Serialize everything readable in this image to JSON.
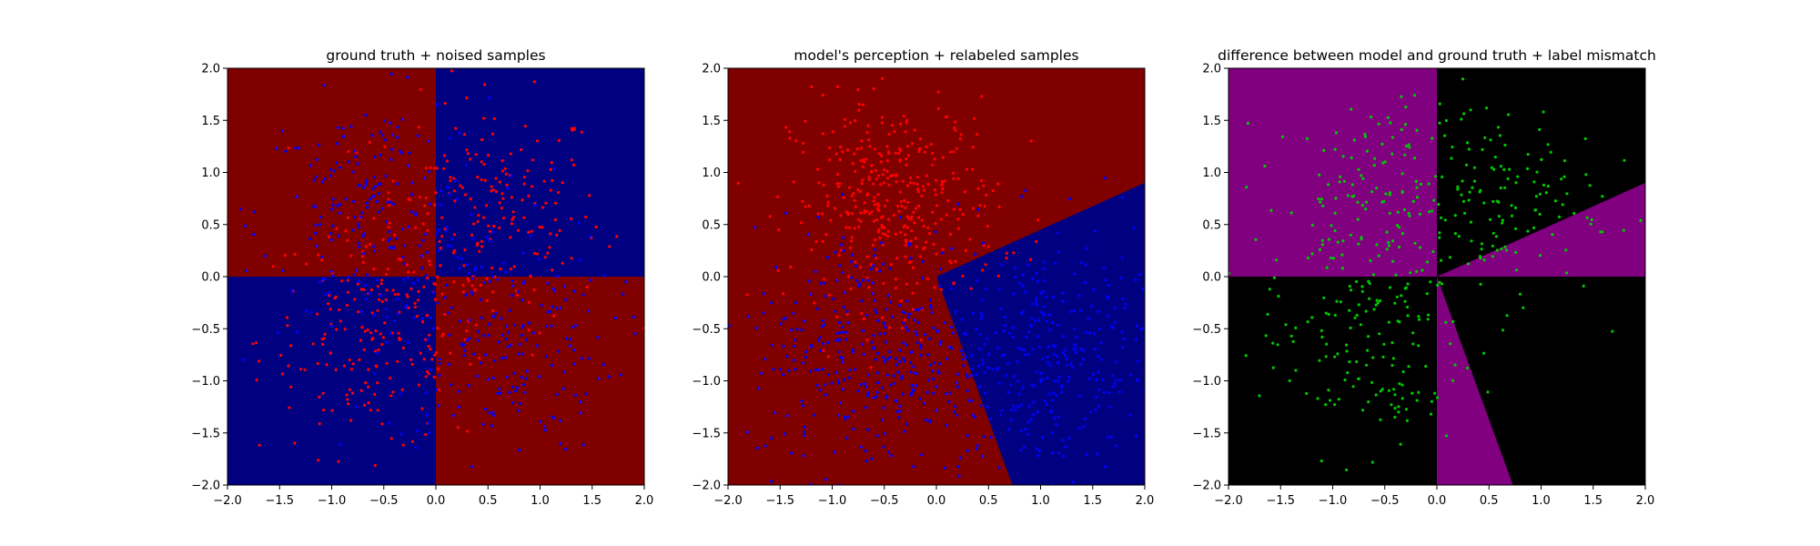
{
  "chart_data": [
    {
      "type": "scatter",
      "title": "ground truth + noised samples",
      "xlim": [
        -2.0,
        2.0
      ],
      "ylim": [
        -2.0,
        2.0
      ],
      "xticks": [
        "−2.0",
        "−1.5",
        "−1.0",
        "−0.5",
        "0.0",
        "0.5",
        "1.0",
        "1.5",
        "2.0"
      ],
      "yticks": [
        "−2.0",
        "−1.5",
        "−1.0",
        "−0.5",
        "0.0",
        "0.5",
        "1.0",
        "1.5",
        "2.0"
      ],
      "background": "XOR quadrants: red where x·y < 0, blue where x·y > 0",
      "regions": [
        {
          "name": "red",
          "color": "#800000",
          "polygons": [
            [
              [
                -2,
                0
              ],
              [
                0,
                0
              ],
              [
                0,
                2
              ],
              [
                -2,
                2
              ]
            ],
            [
              [
                0,
                -2
              ],
              [
                2,
                -2
              ],
              [
                2,
                0
              ],
              [
                0,
                0
              ]
            ]
          ]
        },
        {
          "name": "blue",
          "color": "#000080",
          "polygons": [
            [
              [
                0,
                0
              ],
              [
                2,
                0
              ],
              [
                2,
                2
              ],
              [
                0,
                2
              ]
            ],
            [
              [
                -2,
                -2
              ],
              [
                0,
                -2
              ],
              [
                0,
                0
              ],
              [
                -2,
                0
              ]
            ]
          ]
        }
      ],
      "series": [
        {
          "color": "#ff0000",
          "cluster_centers": [
            [
              0.5,
              0.6
            ],
            [
              -0.6,
              -0.6
            ]
          ],
          "spread": 0.55,
          "count": 420
        },
        {
          "color": "#0000ff",
          "cluster_centers": [
            [
              -0.6,
              0.6
            ],
            [
              0.6,
              -0.6
            ]
          ],
          "spread": 0.55,
          "count": 420
        }
      ],
      "grid": false
    },
    {
      "type": "scatter",
      "title": "model's perception + relabeled samples",
      "xlim": [
        -2.0,
        2.0
      ],
      "ylim": [
        -2.0,
        2.0
      ],
      "xticks": [
        "−2.0",
        "−1.5",
        "−1.0",
        "−0.5",
        "0.0",
        "0.5",
        "1.0",
        "1.5",
        "2.0"
      ],
      "yticks": [
        "−2.0",
        "−1.5",
        "−1.0",
        "−0.5",
        "0.0",
        "0.5",
        "1.0",
        "1.5",
        "2.0"
      ],
      "background": "blue wedge from origin between rays to (2.0, 0.9) and (0.73, -2.0); red elsewhere",
      "regions": [
        {
          "name": "red",
          "color": "#800000",
          "polygons": [
            [
              [
                -2,
                -2
              ],
              [
                2,
                -2
              ],
              [
                2,
                2
              ],
              [
                -2,
                2
              ]
            ]
          ]
        },
        {
          "name": "blue",
          "color": "#000080",
          "polygons": [
            [
              [
                0,
                0
              ],
              [
                2,
                0.9
              ],
              [
                2,
                -2
              ],
              [
                0.73,
                -2
              ]
            ]
          ]
        }
      ],
      "series": [
        {
          "color": "#ff0000",
          "cluster_centers": [
            [
              -0.4,
              0.7
            ]
          ],
          "spread": 0.5,
          "count": 380
        },
        {
          "color": "#0000ff",
          "cluster_centers": [
            [
              1.1,
              -0.8
            ],
            [
              -0.6,
              -0.7
            ]
          ],
          "spread": 0.6,
          "count": 700
        }
      ],
      "grid": false
    },
    {
      "type": "scatter",
      "title": "difference between model and ground truth + label mismatch",
      "xlim": [
        -2.0,
        2.0
      ],
      "ylim": [
        -2.0,
        2.0
      ],
      "xticks": [
        "−2.0",
        "−1.5",
        "−1.0",
        "−0.5",
        "0.0",
        "0.5",
        "1.0",
        "1.5",
        "2.0"
      ],
      "yticks": [
        "−2.0",
        "−1.5",
        "−1.0",
        "−0.5",
        "0.0",
        "0.5",
        "1.0",
        "1.5",
        "2.0"
      ],
      "background": "purple where model differs from ground truth, black where they agree",
      "regions": [
        {
          "name": "agree",
          "color": "#000000",
          "polygons": [
            [
              [
                -2,
                -2
              ],
              [
                2,
                -2
              ],
              [
                2,
                2
              ],
              [
                -2,
                2
              ]
            ]
          ]
        },
        {
          "name": "differ",
          "color": "#800080",
          "polygons": [
            [
              [
                -2,
                0
              ],
              [
                0,
                0
              ],
              [
                0,
                2
              ],
              [
                -2,
                2
              ]
            ],
            [
              [
                0,
                0
              ],
              [
                2,
                0
              ],
              [
                2,
                0.9
              ]
            ],
            [
              [
                0,
                0
              ],
              [
                0.73,
                -2
              ],
              [
                0,
                -2
              ]
            ]
          ]
        }
      ],
      "series": [
        {
          "color": "#00c800",
          "cluster_centers": [
            [
              -0.6,
              0.7
            ],
            [
              0.55,
              0.75
            ],
            [
              -0.7,
              -0.7
            ]
          ],
          "spread": 0.5,
          "count": 420
        }
      ],
      "grid": false
    }
  ]
}
